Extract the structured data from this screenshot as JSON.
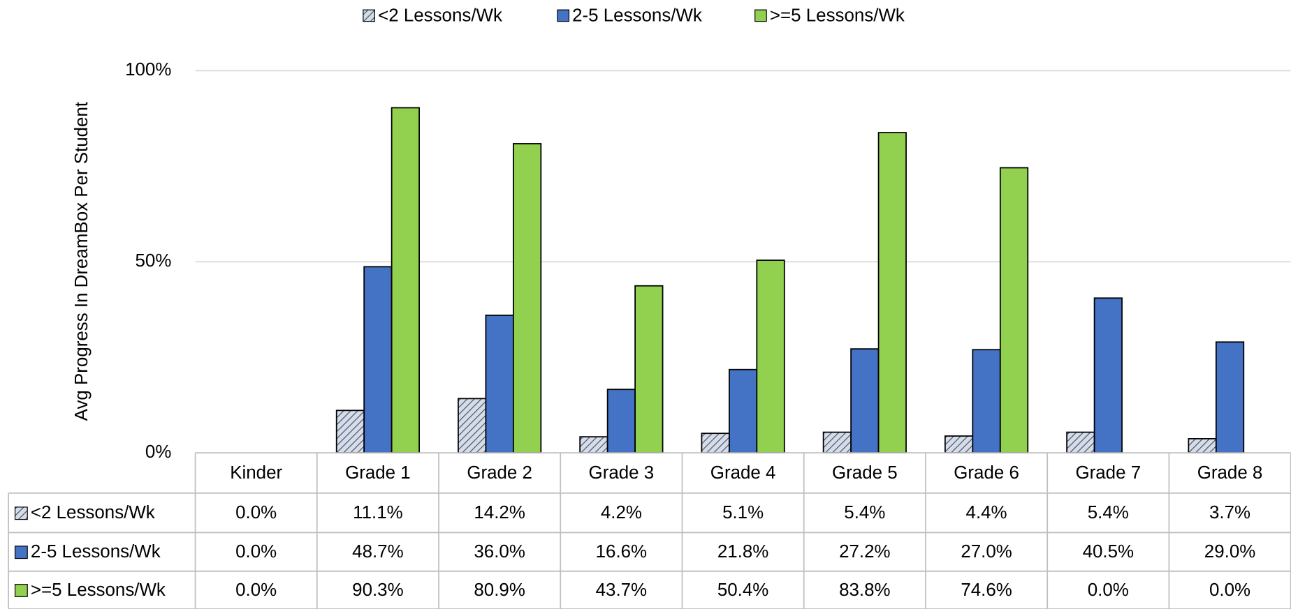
{
  "chart_data": {
    "type": "bar",
    "y_label": "Avg Progress In DreamBox Per Student",
    "categories": [
      "Kinder",
      "Grade 1",
      "Grade 2",
      "Grade 3",
      "Grade 4",
      "Grade 5",
      "Grade 6",
      "Grade 7",
      "Grade 8"
    ],
    "series": [
      {
        "name": "<2 Lessons/Wk",
        "color": "#d6dce8",
        "pattern": "diagonal",
        "values": [
          0,
          11.1,
          14.2,
          4.2,
          5.1,
          5.4,
          4.4,
          5.4,
          3.7
        ],
        "value_labels": [
          "0.0%",
          "11.1%",
          "14.2%",
          "4.2%",
          "5.1%",
          "5.4%",
          "4.4%",
          "5.4%",
          "3.7%"
        ]
      },
      {
        "name": "2-5 Lessons/Wk",
        "color": "#4472c4",
        "values": [
          0,
          48.7,
          36.0,
          16.6,
          21.8,
          27.2,
          27.0,
          40.5,
          29.0
        ],
        "value_labels": [
          "0.0%",
          "48.7%",
          "36.0%",
          "16.6%",
          "21.8%",
          "27.2%",
          "27.0%",
          "40.5%",
          "29.0%"
        ]
      },
      {
        "name": ">=5 Lessons/Wk",
        "color": "#92d050",
        "values": [
          0,
          90.3,
          80.9,
          43.7,
          50.4,
          83.8,
          74.6,
          0,
          0
        ],
        "value_labels": [
          "0.0%",
          "90.3%",
          "80.9%",
          "43.7%",
          "50.4%",
          "83.8%",
          "74.6%",
          "0.0%",
          "0.0%"
        ]
      }
    ],
    "ylim": [
      0,
      100
    ],
    "yticks": [
      {
        "value": 0,
        "label": "0%"
      },
      {
        "value": 50,
        "label": "50%"
      },
      {
        "value": 100,
        "label": "100%"
      }
    ],
    "grid": true,
    "legend": "top",
    "data_table": true
  }
}
